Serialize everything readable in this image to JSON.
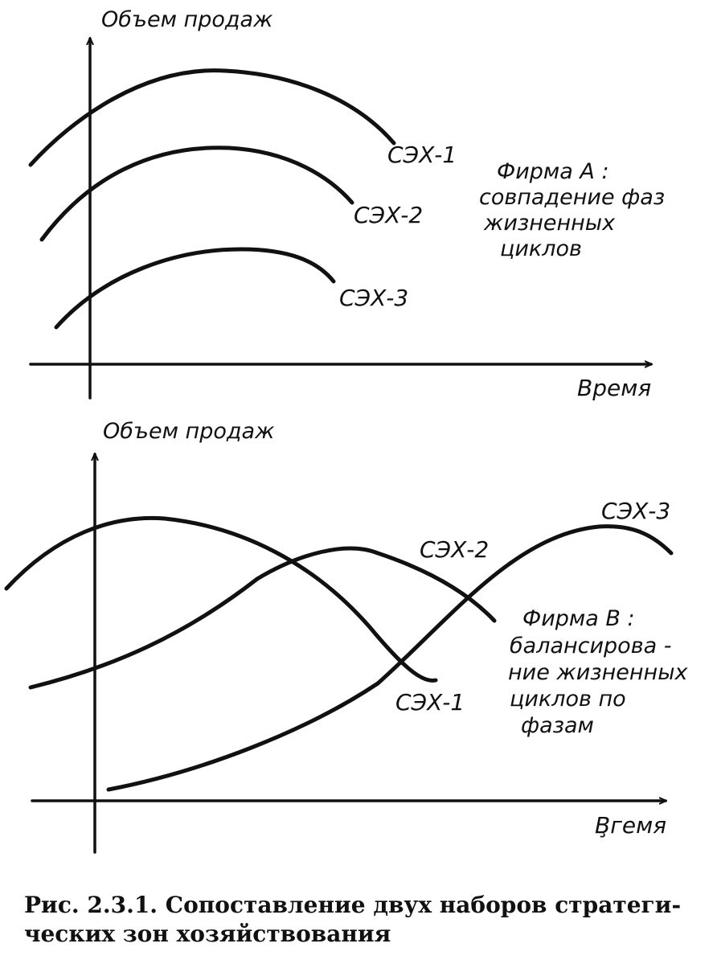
{
  "firm_a": {
    "y_axis_label": "Объем продаж",
    "x_axis_label": "Время",
    "curves": [
      "СЭХ-1",
      "СЭХ-2",
      "СЭХ-3"
    ],
    "note": [
      "Фирма А :",
      "совпадение фаз",
      "жизненных",
      "циклов"
    ]
  },
  "firm_b": {
    "y_axis_label": "Объем продаж",
    "x_axis_label": "В̧гемя",
    "curves": [
      "СЭХ-1",
      "СЭХ-2",
      "СЭХ-3"
    ],
    "note": [
      "Фирма В :",
      "балансирова -",
      "ние жизненных",
      "циклов по",
      "фазам"
    ]
  },
  "caption": {
    "line1": "Рис. 2.3.1. Сопоставление двух наборов стратеги-",
    "line2": "ческих зон хозяйствования"
  }
}
